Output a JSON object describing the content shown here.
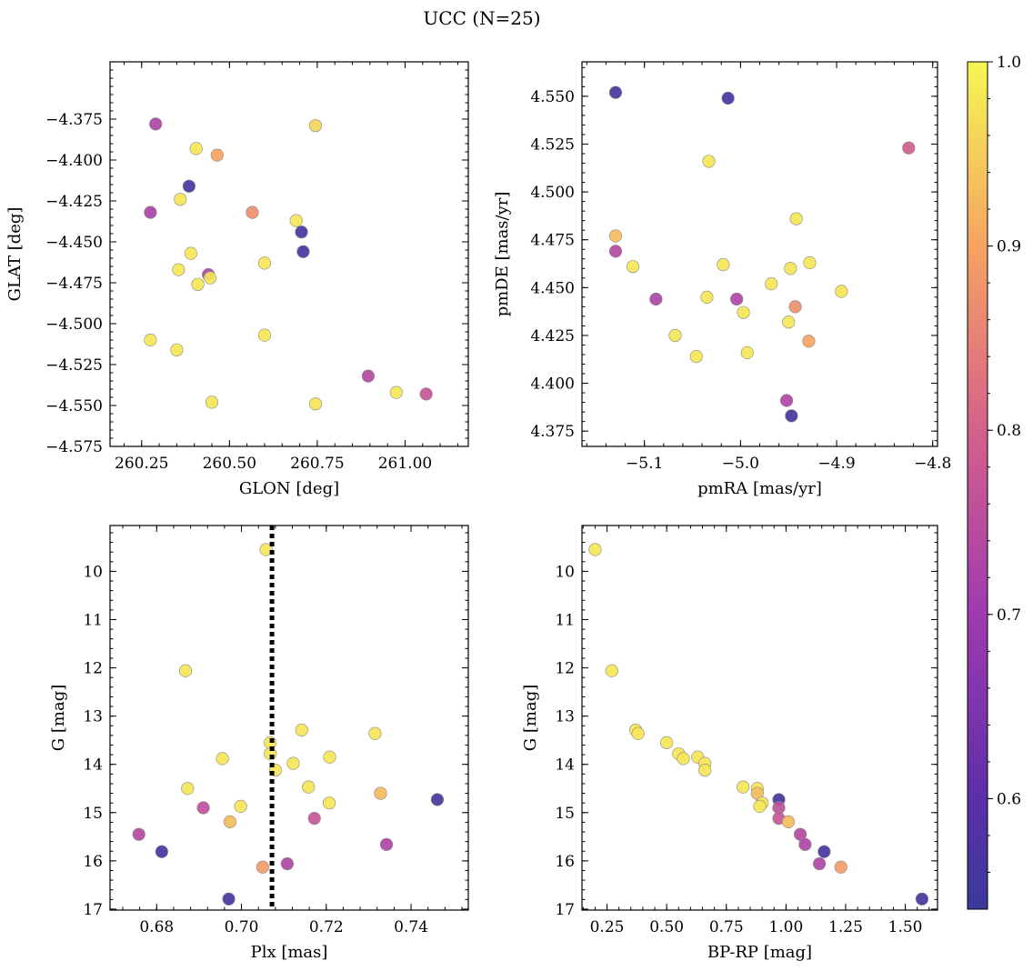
{
  "title": "UCC (N=25)",
  "colors": {
    "colormap": "plasma",
    "dotted_line": "#000000"
  },
  "colorbar": {
    "range": [
      0.54,
      1.0
    ],
    "ticks": [
      0.6,
      0.7,
      0.8,
      0.9,
      1.0
    ],
    "tick_labels": [
      "0.6",
      "0.7",
      "0.8",
      "0.9",
      "1.0"
    ]
  },
  "chart_data": [
    {
      "type": "scatter",
      "id": "glon-glat",
      "xlabel": "GLON [deg]",
      "ylabel": "GLAT [deg]",
      "xlim": [
        260.16,
        261.18
      ],
      "ylim": [
        -4.575,
        -4.34
      ],
      "y_inverted": false,
      "xticks": [
        260.25,
        260.5,
        260.75,
        261.0
      ],
      "xtick_labels": [
        "260.25",
        "260.50",
        "260.75",
        "261.00"
      ],
      "yticks": [
        -4.375,
        -4.4,
        -4.425,
        -4.45,
        -4.475,
        -4.5,
        -4.525,
        -4.55,
        -4.575
      ],
      "ytick_labels": [
        "−4.375",
        "−4.400",
        "−4.425",
        "−4.450",
        "−4.475",
        "−4.500",
        "−4.525",
        "−4.550",
        "−4.575"
      ],
      "points": [
        {
          "x": 260.29,
          "y": -4.378,
          "c": 0.73
        },
        {
          "x": 260.745,
          "y": -4.379,
          "c": 0.96
        },
        {
          "x": 260.405,
          "y": -4.393,
          "c": 0.98
        },
        {
          "x": 260.465,
          "y": -4.397,
          "c": 0.9
        },
        {
          "x": 260.385,
          "y": -4.416,
          "c": 0.56
        },
        {
          "x": 260.36,
          "y": -4.424,
          "c": 0.98
        },
        {
          "x": 260.275,
          "y": -4.432,
          "c": 0.72
        },
        {
          "x": 260.565,
          "y": -4.432,
          "c": 0.87
        },
        {
          "x": 260.69,
          "y": -4.437,
          "c": 0.98
        },
        {
          "x": 260.705,
          "y": -4.444,
          "c": 0.56
        },
        {
          "x": 260.71,
          "y": -4.456,
          "c": 0.56
        },
        {
          "x": 260.39,
          "y": -4.457,
          "c": 0.98
        },
        {
          "x": 260.6,
          "y": -4.463,
          "c": 0.98
        },
        {
          "x": 260.355,
          "y": -4.467,
          "c": 0.98
        },
        {
          "x": 260.44,
          "y": -4.47,
          "c": 0.73
        },
        {
          "x": 260.445,
          "y": -4.472,
          "c": 0.98
        },
        {
          "x": 260.41,
          "y": -4.476,
          "c": 0.98
        },
        {
          "x": 260.6,
          "y": -4.507,
          "c": 0.98
        },
        {
          "x": 260.275,
          "y": -4.51,
          "c": 0.98
        },
        {
          "x": 260.35,
          "y": -4.516,
          "c": 0.98
        },
        {
          "x": 260.895,
          "y": -4.532,
          "c": 0.74
        },
        {
          "x": 260.975,
          "y": -4.542,
          "c": 0.98
        },
        {
          "x": 261.06,
          "y": -4.543,
          "c": 0.77
        },
        {
          "x": 260.45,
          "y": -4.548,
          "c": 0.98
        },
        {
          "x": 260.745,
          "y": -4.549,
          "c": 0.98
        }
      ]
    },
    {
      "type": "scatter",
      "id": "pmra-pmde",
      "xlabel": "pmRA [mas/yr]",
      "ylabel": "pmDE [mas/yr]",
      "xlim": [
        -5.165,
        -4.795
      ],
      "ylim": [
        4.367,
        4.568
      ],
      "y_inverted": false,
      "xticks": [
        -5.1,
        -5.0,
        -4.9,
        -4.8
      ],
      "xtick_labels": [
        "−5.1",
        "−5.0",
        "−4.9",
        "−4.8"
      ],
      "yticks": [
        4.375,
        4.4,
        4.425,
        4.45,
        4.475,
        4.5,
        4.525,
        4.55
      ],
      "ytick_labels": [
        "4.375",
        "4.400",
        "4.425",
        "4.450",
        "4.475",
        "4.500",
        "4.525",
        "4.550"
      ],
      "points": [
        {
          "x": -5.13,
          "y": 4.552,
          "c": 0.56
        },
        {
          "x": -5.013,
          "y": 4.549,
          "c": 0.56
        },
        {
          "x": -4.825,
          "y": 4.523,
          "c": 0.79
        },
        {
          "x": -5.033,
          "y": 4.516,
          "c": 0.98
        },
        {
          "x": -4.942,
          "y": 4.486,
          "c": 0.98
        },
        {
          "x": -5.13,
          "y": 4.477,
          "c": 0.93
        },
        {
          "x": -5.13,
          "y": 4.469,
          "c": 0.74
        },
        {
          "x": -4.928,
          "y": 4.463,
          "c": 0.98
        },
        {
          "x": -5.018,
          "y": 4.462,
          "c": 0.98
        },
        {
          "x": -5.112,
          "y": 4.461,
          "c": 0.98
        },
        {
          "x": -4.948,
          "y": 4.46,
          "c": 0.98
        },
        {
          "x": -4.968,
          "y": 4.452,
          "c": 0.98
        },
        {
          "x": -4.895,
          "y": 4.448,
          "c": 0.98
        },
        {
          "x": -5.035,
          "y": 4.445,
          "c": 0.98
        },
        {
          "x": -5.088,
          "y": 4.444,
          "c": 0.73
        },
        {
          "x": -5.004,
          "y": 4.444,
          "c": 0.73
        },
        {
          "x": -4.943,
          "y": 4.44,
          "c": 0.87
        },
        {
          "x": -4.997,
          "y": 4.437,
          "c": 0.98
        },
        {
          "x": -4.95,
          "y": 4.432,
          "c": 0.98
        },
        {
          "x": -5.068,
          "y": 4.425,
          "c": 0.98
        },
        {
          "x": -4.929,
          "y": 4.422,
          "c": 0.9
        },
        {
          "x": -4.993,
          "y": 4.416,
          "c": 0.98
        },
        {
          "x": -5.046,
          "y": 4.414,
          "c": 0.98
        },
        {
          "x": -4.952,
          "y": 4.391,
          "c": 0.73
        },
        {
          "x": -4.947,
          "y": 4.383,
          "c": 0.56
        }
      ]
    },
    {
      "type": "scatter",
      "id": "plx-g",
      "xlabel": "Plx [mas]",
      "ylabel": "G [mag]",
      "xlim": [
        0.669,
        0.7535
      ],
      "ylim": [
        17.02,
        9.05
      ],
      "y_inverted": true,
      "vline": 0.7072,
      "xticks": [
        0.68,
        0.7,
        0.72,
        0.74
      ],
      "xtick_labels": [
        "0.68",
        "0.70",
        "0.72",
        "0.74"
      ],
      "yticks": [
        10,
        11,
        12,
        13,
        14,
        15,
        16,
        17
      ],
      "ytick_labels": [
        "10",
        "11",
        "12",
        "13",
        "14",
        "15",
        "16",
        "17"
      ],
      "points": [
        {
          "x": 0.7058,
          "y": 9.55,
          "c": 0.98
        },
        {
          "x": 0.6868,
          "y": 12.06,
          "c": 0.98
        },
        {
          "x": 0.7142,
          "y": 13.29,
          "c": 0.98
        },
        {
          "x": 0.7315,
          "y": 13.36,
          "c": 0.98
        },
        {
          "x": 0.7068,
          "y": 13.55,
          "c": 0.98
        },
        {
          "x": 0.7068,
          "y": 13.78,
          "c": 0.98
        },
        {
          "x": 0.7208,
          "y": 13.85,
          "c": 0.98
        },
        {
          "x": 0.6955,
          "y": 13.88,
          "c": 0.98
        },
        {
          "x": 0.7122,
          "y": 13.98,
          "c": 0.98
        },
        {
          "x": 0.708,
          "y": 14.12,
          "c": 0.98
        },
        {
          "x": 0.7158,
          "y": 14.47,
          "c": 0.98
        },
        {
          "x": 0.6873,
          "y": 14.5,
          "c": 0.98
        },
        {
          "x": 0.7328,
          "y": 14.6,
          "c": 0.93
        },
        {
          "x": 0.7462,
          "y": 14.73,
          "c": 0.56
        },
        {
          "x": 0.7207,
          "y": 14.8,
          "c": 0.98
        },
        {
          "x": 0.6998,
          "y": 14.87,
          "c": 0.98
        },
        {
          "x": 0.691,
          "y": 14.9,
          "c": 0.76
        },
        {
          "x": 0.7172,
          "y": 15.12,
          "c": 0.77
        },
        {
          "x": 0.6973,
          "y": 15.19,
          "c": 0.93
        },
        {
          "x": 0.6758,
          "y": 15.45,
          "c": 0.74
        },
        {
          "x": 0.7342,
          "y": 15.66,
          "c": 0.73
        },
        {
          "x": 0.6812,
          "y": 15.81,
          "c": 0.56
        },
        {
          "x": 0.7108,
          "y": 16.06,
          "c": 0.73
        },
        {
          "x": 0.705,
          "y": 16.13,
          "c": 0.89
        },
        {
          "x": 0.697,
          "y": 16.79,
          "c": 0.56
        }
      ]
    },
    {
      "type": "scatter",
      "id": "bprp-g",
      "xlabel": "BP-RP [mag]",
      "ylabel": "G [mag]",
      "xlim": [
        0.145,
        1.635
      ],
      "ylim": [
        17.02,
        9.05
      ],
      "y_inverted": true,
      "xticks": [
        0.25,
        0.5,
        0.75,
        1.0,
        1.25,
        1.5
      ],
      "xtick_labels": [
        "0.25",
        "0.50",
        "0.75",
        "1.00",
        "1.25",
        "1.50"
      ],
      "yticks": [
        10,
        11,
        12,
        13,
        14,
        15,
        16,
        17
      ],
      "ytick_labels": [
        "10",
        "11",
        "12",
        "13",
        "14",
        "15",
        "16",
        "17"
      ],
      "points": [
        {
          "x": 0.2,
          "y": 9.55,
          "c": 0.98
        },
        {
          "x": 0.27,
          "y": 12.06,
          "c": 0.98
        },
        {
          "x": 0.37,
          "y": 13.29,
          "c": 0.98
        },
        {
          "x": 0.38,
          "y": 13.36,
          "c": 0.98
        },
        {
          "x": 0.5,
          "y": 13.55,
          "c": 0.98
        },
        {
          "x": 0.55,
          "y": 13.78,
          "c": 0.98
        },
        {
          "x": 0.57,
          "y": 13.88,
          "c": 0.98
        },
        {
          "x": 0.63,
          "y": 13.85,
          "c": 0.98
        },
        {
          "x": 0.66,
          "y": 13.98,
          "c": 0.98
        },
        {
          "x": 0.66,
          "y": 14.12,
          "c": 0.98
        },
        {
          "x": 0.82,
          "y": 14.47,
          "c": 0.98
        },
        {
          "x": 0.88,
          "y": 14.5,
          "c": 0.98
        },
        {
          "x": 0.88,
          "y": 14.6,
          "c": 0.93
        },
        {
          "x": 0.9,
          "y": 14.8,
          "c": 0.98
        },
        {
          "x": 0.89,
          "y": 14.87,
          "c": 0.98
        },
        {
          "x": 0.97,
          "y": 14.73,
          "c": 0.56
        },
        {
          "x": 0.97,
          "y": 14.9,
          "c": 0.76
        },
        {
          "x": 0.97,
          "y": 15.12,
          "c": 0.77
        },
        {
          "x": 1.01,
          "y": 15.19,
          "c": 0.93
        },
        {
          "x": 1.06,
          "y": 15.45,
          "c": 0.74
        },
        {
          "x": 1.08,
          "y": 15.66,
          "c": 0.73
        },
        {
          "x": 1.16,
          "y": 15.81,
          "c": 0.56
        },
        {
          "x": 1.14,
          "y": 16.06,
          "c": 0.73
        },
        {
          "x": 1.23,
          "y": 16.13,
          "c": 0.89
        },
        {
          "x": 1.57,
          "y": 16.79,
          "c": 0.56
        }
      ]
    }
  ]
}
